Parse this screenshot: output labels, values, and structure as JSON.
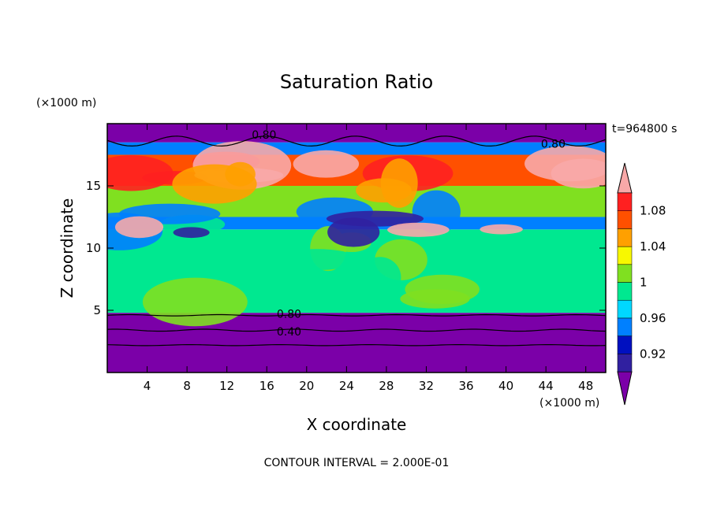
{
  "chart_data": {
    "type": "heatmap",
    "title": "Saturation Ratio",
    "xlabel": "X coordinate",
    "ylabel": "Z coordinate",
    "x_unit": "(×1000 m)",
    "y_unit": "(×1000 m)",
    "time_label": "t=964800 s",
    "footer": "CONTOUR INTERVAL = 2.000E-01",
    "xlim": [
      0,
      50
    ],
    "ylim": [
      0,
      20
    ],
    "x_ticks": [
      "4",
      "8",
      "12",
      "16",
      "20",
      "24",
      "28",
      "32",
      "36",
      "40",
      "44",
      "48"
    ],
    "y_ticks": [
      "5",
      "10",
      "15"
    ],
    "colorbar": {
      "levels": [
        0.9,
        0.92,
        0.94,
        0.96,
        0.98,
        1.0,
        1.02,
        1.04,
        1.06,
        1.08,
        1.1
      ],
      "labels": [
        "0.92",
        "0.96",
        "1",
        "1.04",
        "1.08"
      ],
      "colors": [
        "#7b00a8",
        "#3020a0",
        "#0010c0",
        "#0080ff",
        "#00d8ff",
        "#00e890",
        "#80e020",
        "#f8f800",
        "#ffa000",
        "#ff5000",
        "#ff2020",
        "#f8a8a8"
      ]
    },
    "contour_labels": [
      "0.80",
      "0.80",
      "0.80",
      "0.40"
    ],
    "regions": [
      {
        "zmin": 0.0,
        "zmax": 4.8,
        "value": 0.4,
        "color": "#7b00a8"
      },
      {
        "zmin": 4.8,
        "zmax": 5.0,
        "value": 0.97,
        "color": "#00e890"
      },
      {
        "zmin": 5.0,
        "zmax": 11.5,
        "value": 0.99,
        "color": "#00e890"
      },
      {
        "zmin": 11.5,
        "zmax": 12.5,
        "value": 0.95,
        "color": "#0080ff"
      },
      {
        "zmin": 12.5,
        "zmax": 15.0,
        "value": 1.0,
        "color": "#80e020"
      },
      {
        "zmin": 15.0,
        "zmax": 17.5,
        "value": 1.08,
        "color": "#ff5000"
      },
      {
        "zmin": 17.5,
        "zmax": 18.5,
        "value": 0.96,
        "color": "#0080ff"
      },
      {
        "zmin": 18.5,
        "zmax": 20.0,
        "value": 0.6,
        "color": "#7b00a8"
      }
    ]
  }
}
